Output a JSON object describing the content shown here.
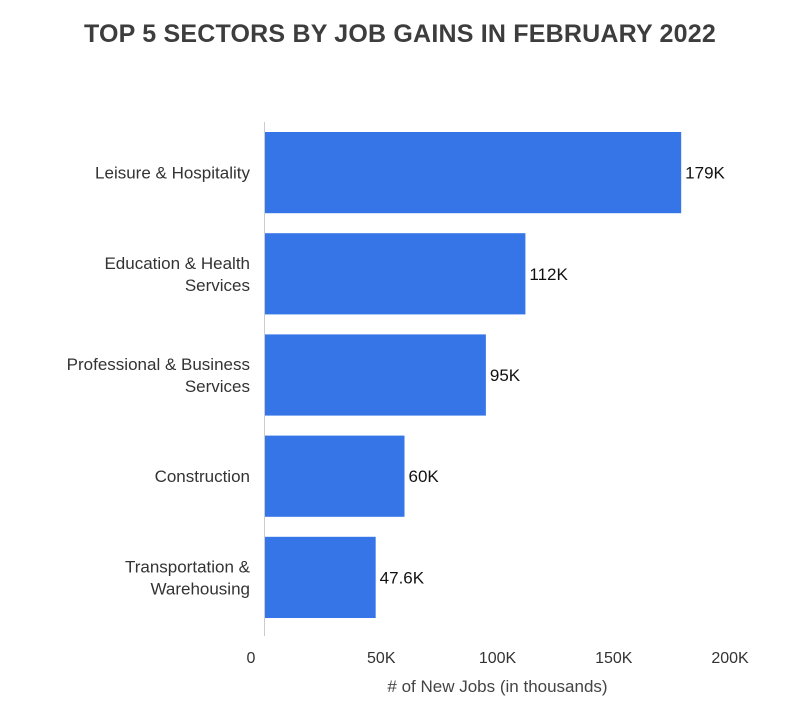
{
  "chart_data": {
    "type": "bar",
    "orientation": "horizontal",
    "title": "TOP 5 SECTORS BY JOB GAINS IN FEBRUARY 2022",
    "categories": [
      [
        "Leisure & Hospitality"
      ],
      [
        "Education & Health",
        "Services"
      ],
      [
        "Professional & Business",
        "Services"
      ],
      [
        "Construction"
      ],
      [
        "Transportation &",
        "Warehousing"
      ]
    ],
    "values": [
      179,
      112,
      95,
      60,
      47.6
    ],
    "value_labels": [
      "179K",
      "112K",
      "95K",
      "60K",
      "47.6K"
    ],
    "xlabel": "# of New Jobs (in thousands)",
    "ylabel": "",
    "xlim": [
      0,
      200
    ],
    "xticks": [
      0,
      50,
      100,
      150,
      200
    ],
    "xtick_labels": [
      "0",
      "50K",
      "100K",
      "150K",
      "200K"
    ],
    "grid": false,
    "colors": {
      "bar": "#3575e8",
      "axis": "#cccccc"
    }
  }
}
